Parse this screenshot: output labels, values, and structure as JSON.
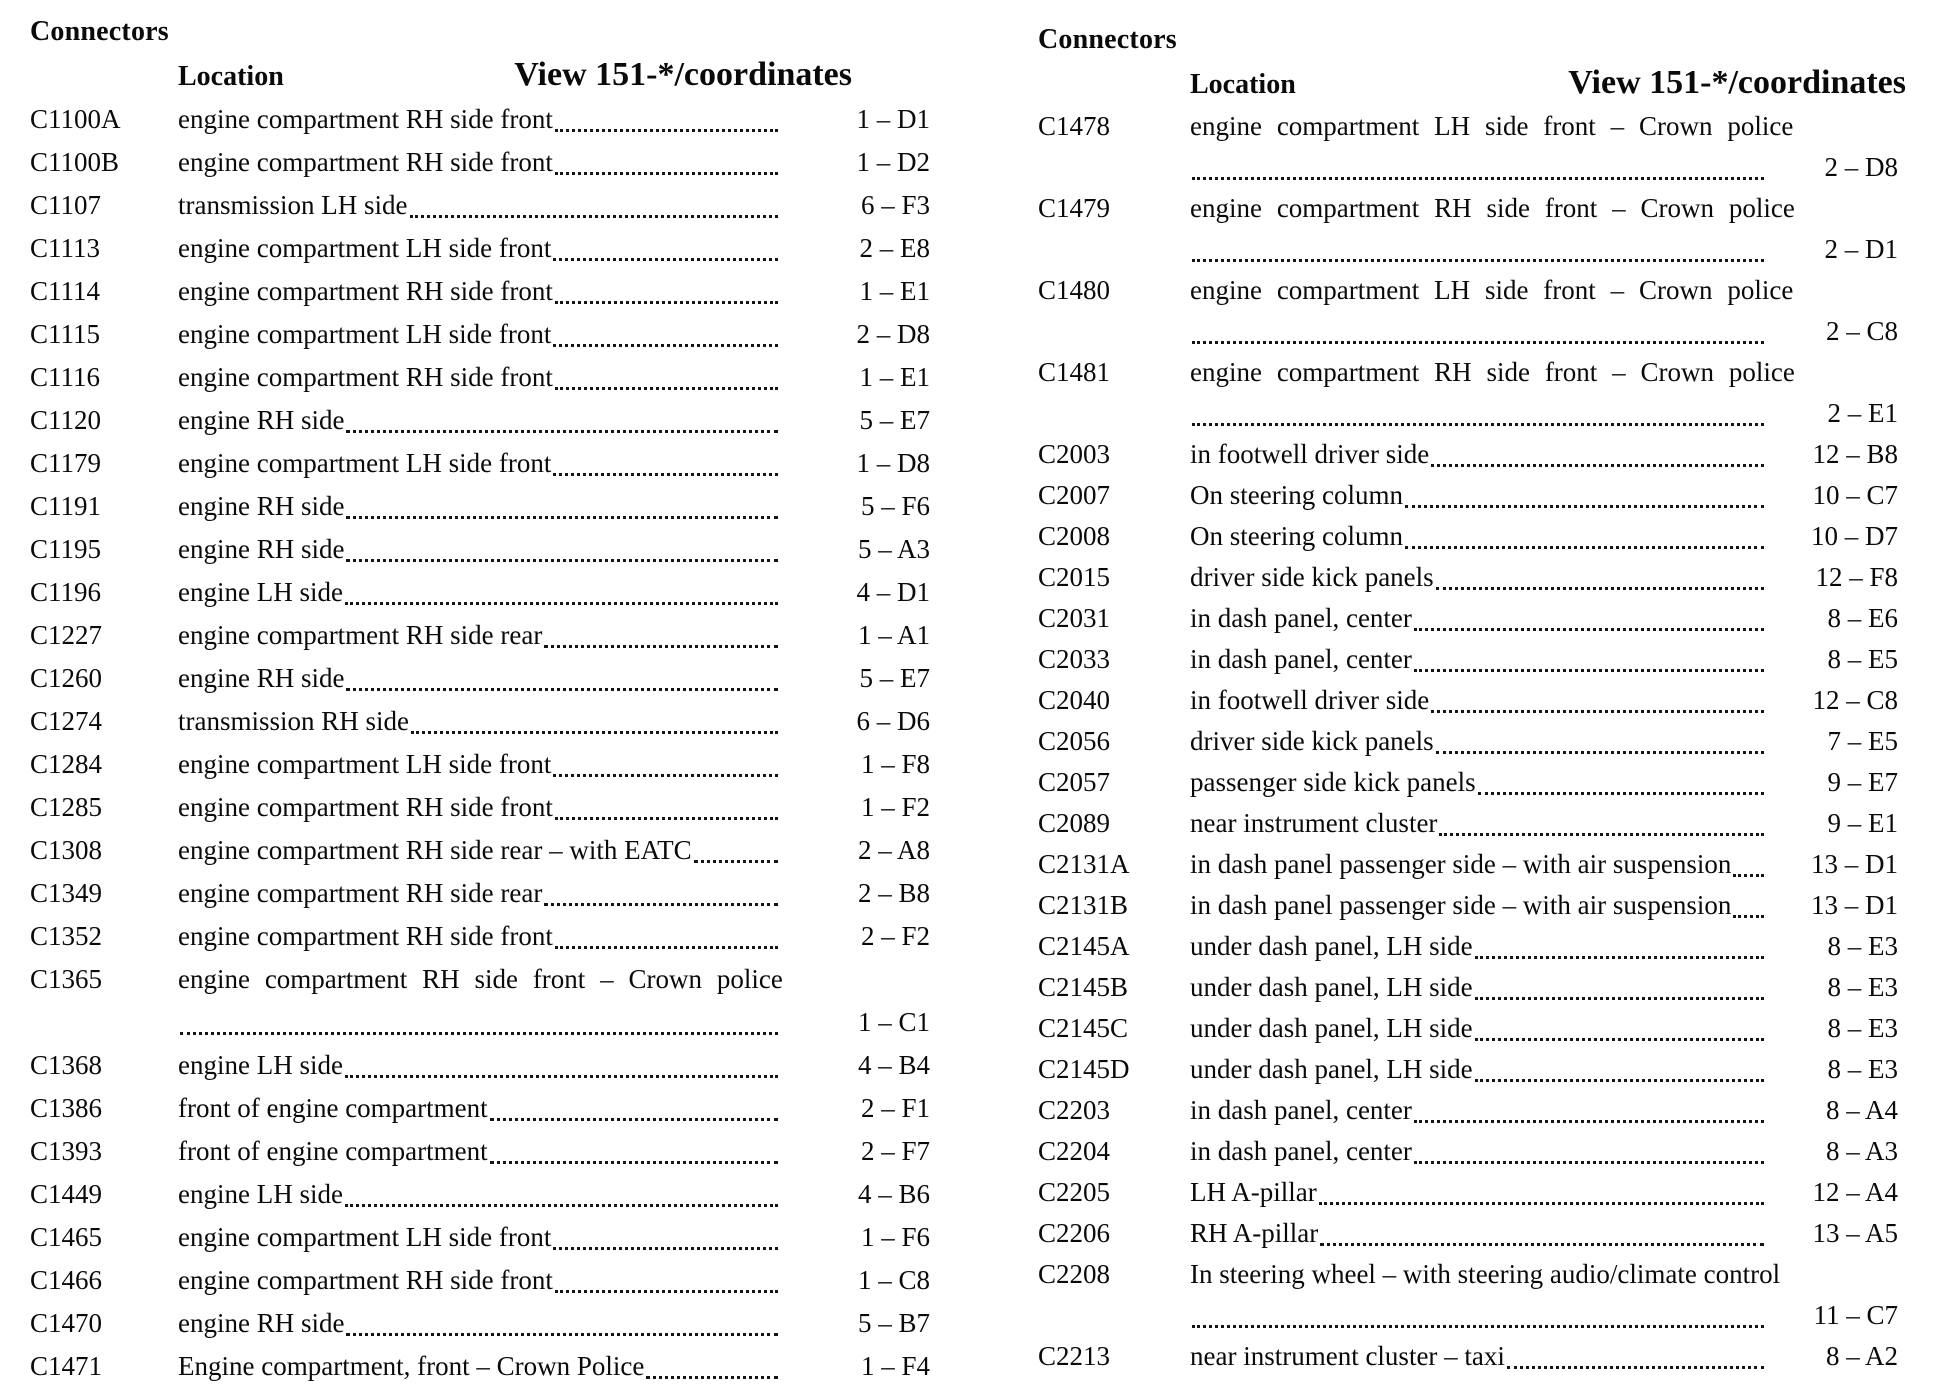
{
  "columns": [
    {
      "heading": "Connectors",
      "location_header": "Location",
      "view_header": "View 151-*/coordinates",
      "rows": [
        {
          "id": "C1100A",
          "location": "engine compartment RH side front",
          "coord": "1 – D1"
        },
        {
          "id": "C1100B",
          "location": "engine compartment RH side front",
          "coord": "1 – D2"
        },
        {
          "id": "C1107",
          "location": "transmission LH side",
          "coord": "6 – F3"
        },
        {
          "id": "C1113",
          "location": "engine compartment LH side front",
          "coord": "2 – E8"
        },
        {
          "id": "C1114",
          "location": "engine compartment RH side front",
          "coord": "1 – E1"
        },
        {
          "id": "C1115",
          "location": "engine compartment LH side front",
          "coord": "2 – D8"
        },
        {
          "id": "C1116",
          "location": "engine compartment RH side front",
          "coord": "1 – E1"
        },
        {
          "id": "C1120",
          "location": "engine RH side",
          "coord": "5 – E7"
        },
        {
          "id": "C1179",
          "location": "engine compartment LH side front",
          "coord": "1 – D8"
        },
        {
          "id": "C1191",
          "location": "engine RH side",
          "coord": "5 – F6"
        },
        {
          "id": "C1195",
          "location": "engine RH side",
          "coord": "5 – A3"
        },
        {
          "id": "C1196",
          "location": "engine LH side",
          "coord": "4 – D1"
        },
        {
          "id": "C1227",
          "location": "engine compartment RH side rear",
          "coord": "1 – A1"
        },
        {
          "id": "C1260",
          "location": "engine RH side",
          "coord": "5 – E7"
        },
        {
          "id": "C1274",
          "location": "transmission RH side",
          "coord": "6 – D6"
        },
        {
          "id": "C1284",
          "location": "engine compartment LH side front",
          "coord": "1 – F8"
        },
        {
          "id": "C1285",
          "location": "engine compartment RH side front",
          "coord": "1 – F2"
        },
        {
          "id": "C1308",
          "location": "engine compartment RH side rear – with EATC",
          "coord": "2 – A8"
        },
        {
          "id": "C1349",
          "location": "engine compartment RH side rear",
          "coord": "2 – B8"
        },
        {
          "id": "C1352",
          "location": "engine compartment RH side front",
          "coord": "2 – F2"
        },
        {
          "id": "C1365",
          "location": "engine compartment RH side front – Crown police",
          "coord": "1 – C1",
          "wrap": true
        },
        {
          "id": "C1368",
          "location": "engine LH side",
          "coord": "4 – B4"
        },
        {
          "id": "C1386",
          "location": "front of engine compartment",
          "coord": "2 – F1"
        },
        {
          "id": "C1393",
          "location": "front of engine compartment",
          "coord": "2 – F7"
        },
        {
          "id": "C1449",
          "location": "engine LH side",
          "coord": "4 – B6"
        },
        {
          "id": "C1465",
          "location": "engine compartment LH side front",
          "coord": "1 – F6"
        },
        {
          "id": "C1466",
          "location": "engine compartment RH side front",
          "coord": "1 – C8"
        },
        {
          "id": "C1470",
          "location": "engine RH side",
          "coord": "5 – B7"
        },
        {
          "id": "C1471",
          "location": "Engine compartment, front – Crown Police",
          "coord": "1 – F4"
        }
      ]
    },
    {
      "heading": "Connectors",
      "location_header": "Location",
      "view_header": "View 151-*/coordinates",
      "rows": [
        {
          "id": "C1478",
          "location": "engine compartment LH side front – Crown police",
          "coord": "2 – D8",
          "wrap": true
        },
        {
          "id": "C1479",
          "location": "engine compartment RH side front – Crown police",
          "coord": "2 – D1",
          "wrap": true
        },
        {
          "id": "C1480",
          "location": "engine compartment LH side front – Crown police",
          "coord": "2 – C8",
          "wrap": true
        },
        {
          "id": "C1481",
          "location": "engine compartment RH side front – Crown police",
          "coord": "2 – E1",
          "wrap": true
        },
        {
          "id": "C2003",
          "location": "in footwell driver side",
          "coord": "12 – B8"
        },
        {
          "id": "C2007",
          "location": "On steering column",
          "coord": "10 – C7"
        },
        {
          "id": "C2008",
          "location": "On steering column",
          "coord": "10 – D7"
        },
        {
          "id": "C2015",
          "location": "driver side kick panels",
          "coord": "12 – F8"
        },
        {
          "id": "C2031",
          "location": "in dash panel, center",
          "coord": "8 – E6"
        },
        {
          "id": "C2033",
          "location": "in dash panel, center",
          "coord": "8 – E5"
        },
        {
          "id": "C2040",
          "location": "in footwell driver side",
          "coord": "12 – C8"
        },
        {
          "id": "C2056",
          "location": "driver side kick panels",
          "coord": "7 – E5"
        },
        {
          "id": "C2057",
          "location": "passenger side kick panels",
          "coord": "9 – E7"
        },
        {
          "id": "C2089",
          "location": "near instrument cluster",
          "coord": "9 – E1"
        },
        {
          "id": "C2131A",
          "location": "in dash panel passenger side – with air suspension",
          "coord": "13 – D1"
        },
        {
          "id": "C2131B",
          "location": "in dash panel passenger side – with air suspension",
          "coord": "13 – D1"
        },
        {
          "id": "C2145A",
          "location": "under dash panel, LH side",
          "coord": "8 – E3"
        },
        {
          "id": "C2145B",
          "location": "under dash panel, LH side",
          "coord": "8 – E3"
        },
        {
          "id": "C2145C",
          "location": "under dash panel, LH side",
          "coord": "8 – E3"
        },
        {
          "id": "C2145D",
          "location": "under dash panel, LH side",
          "coord": "8 – E3"
        },
        {
          "id": "C2203",
          "location": "in dash panel, center",
          "coord": "8 – A4"
        },
        {
          "id": "C2204",
          "location": "in dash panel, center",
          "coord": "8 – A3"
        },
        {
          "id": "C2205",
          "location": "LH A-pillar",
          "coord": "12 – A4"
        },
        {
          "id": "C2206",
          "location": "RH A-pillar",
          "coord": "13 – A5"
        },
        {
          "id": "C2208",
          "location": "In steering wheel – with steering audio/climate control",
          "coord": "11 – C7",
          "wrap": true
        },
        {
          "id": "C2213",
          "location": "near instrument cluster – taxi",
          "coord": "8 – A2"
        }
      ]
    }
  ]
}
